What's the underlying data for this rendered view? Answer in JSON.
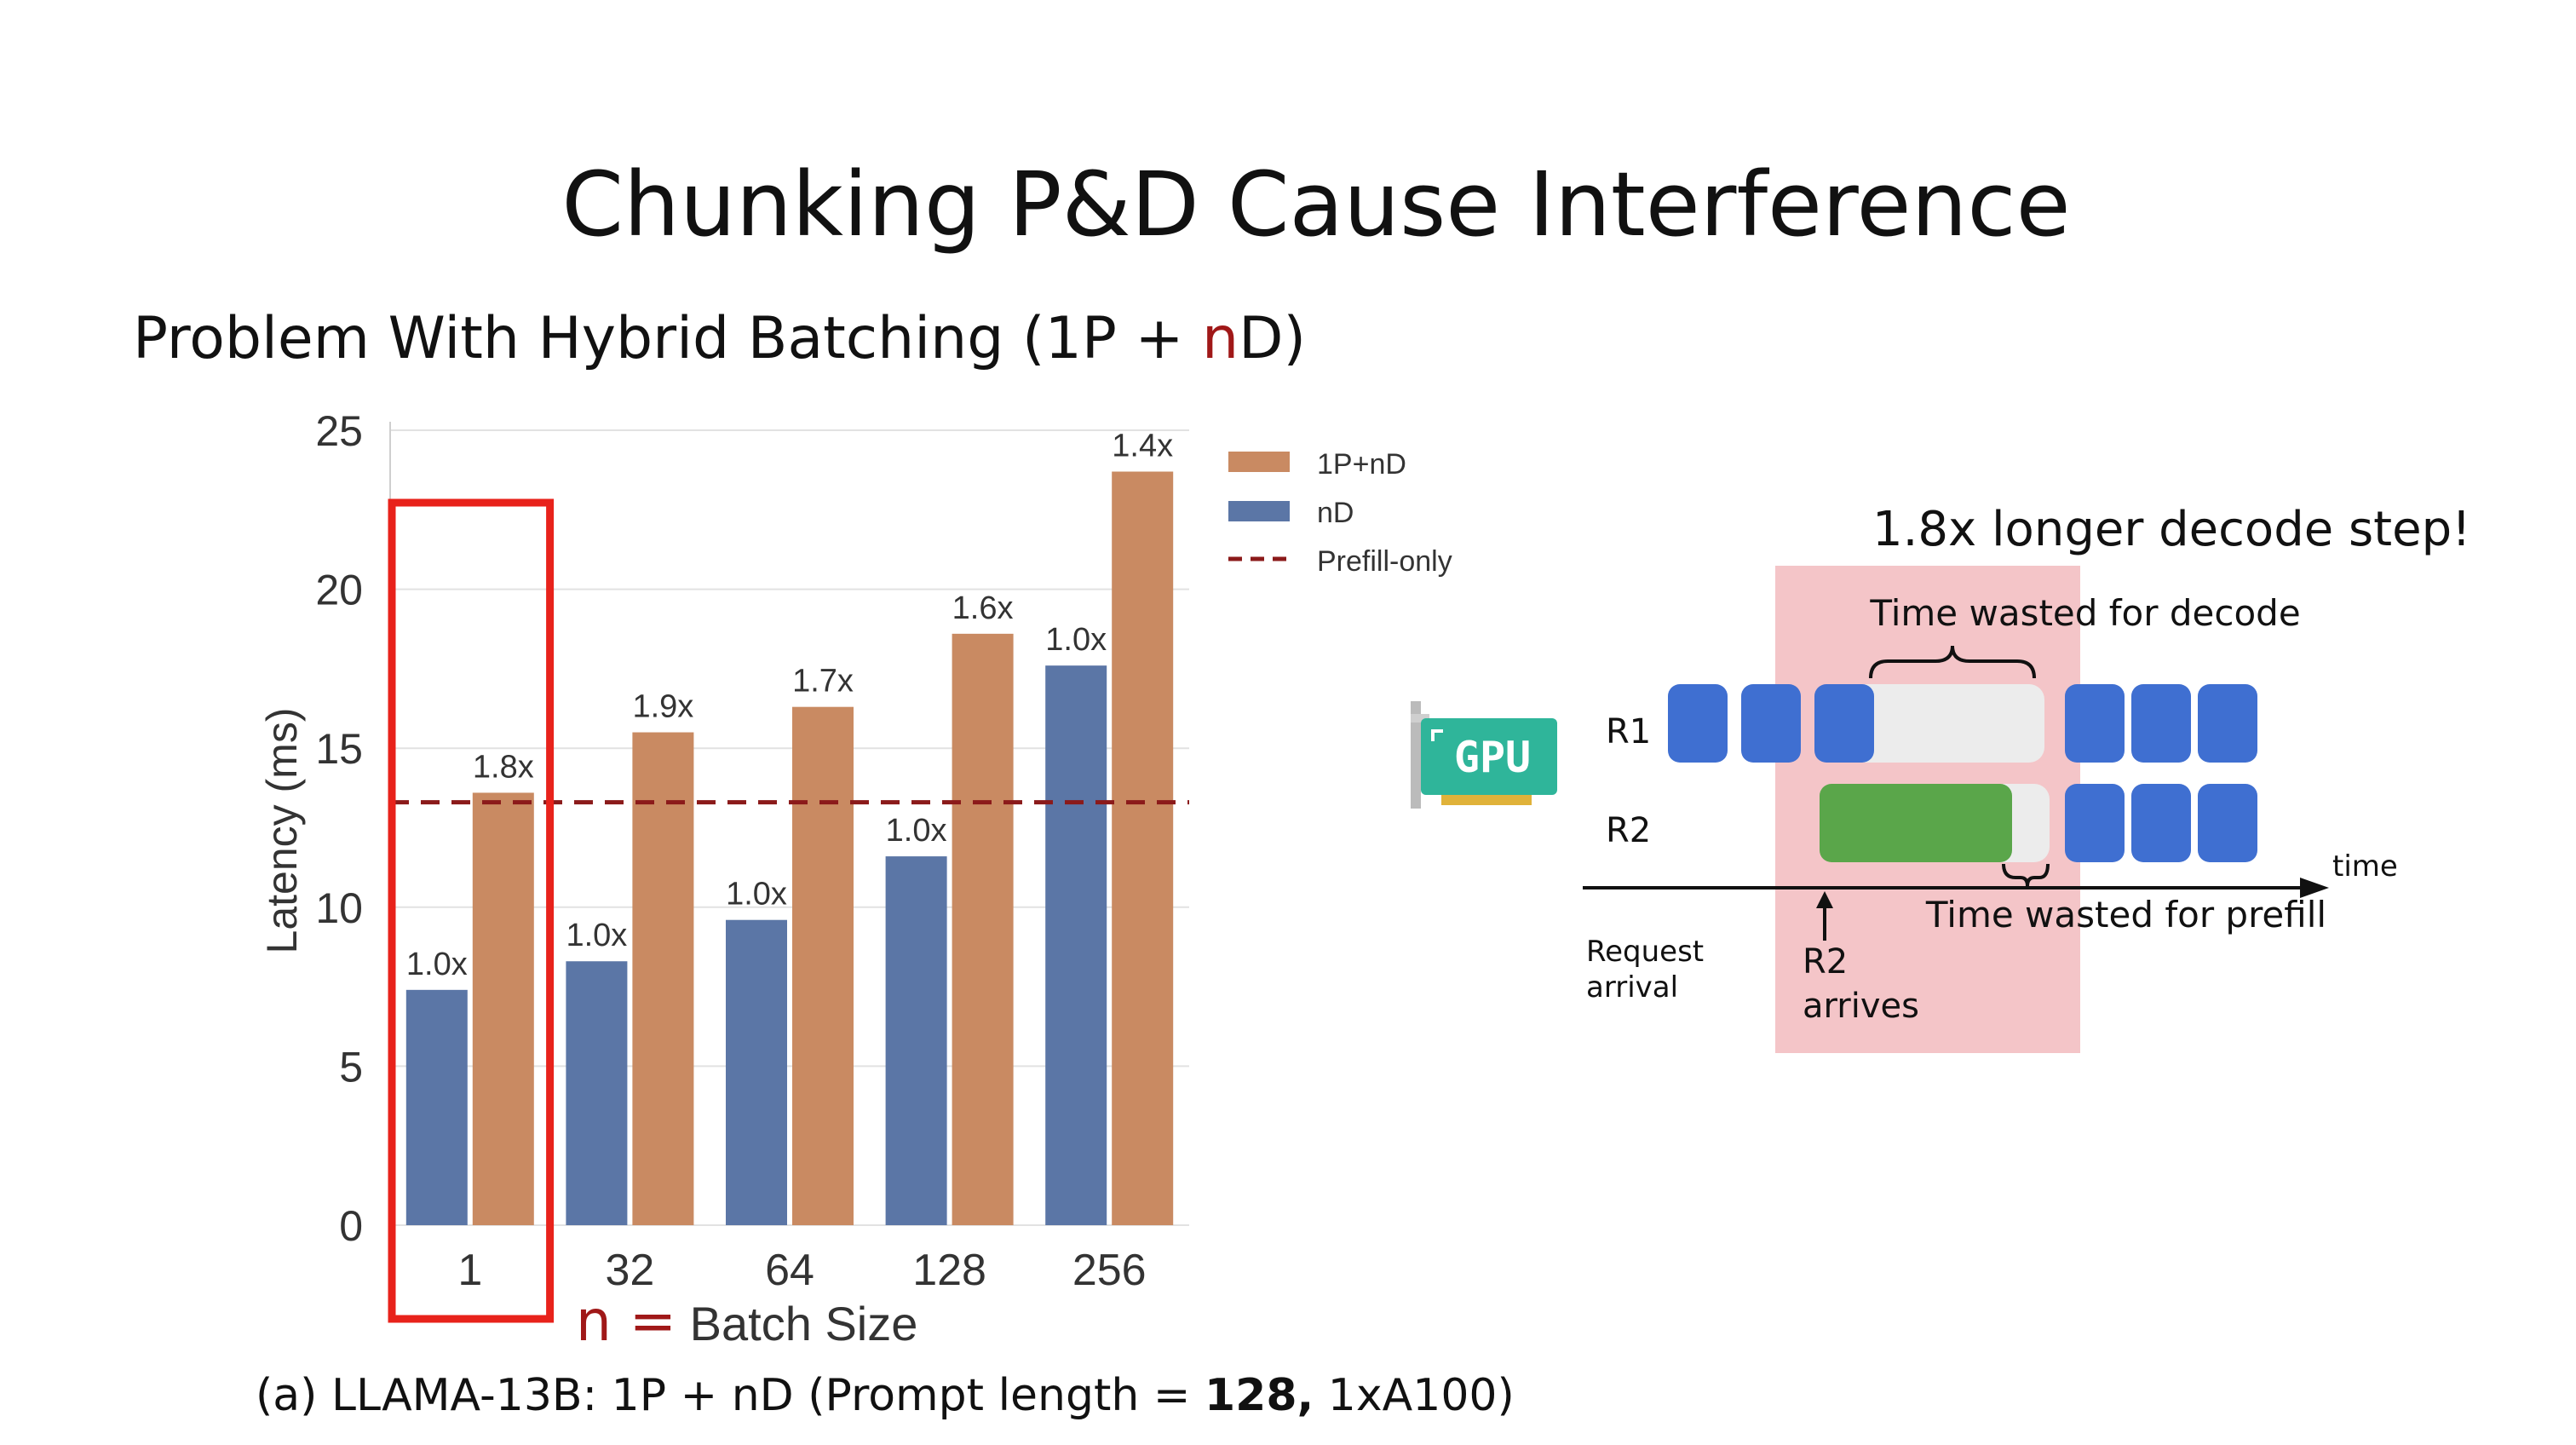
{
  "slide": {
    "title": "Chunking P&D Cause Interference",
    "subtitle_part1": "Problem With Hybrid Batching (1P + ",
    "subtitle_n": "n",
    "subtitle_part2": "D)",
    "accent_color": "#a01818"
  },
  "chart_data": {
    "type": "bar",
    "title": "",
    "categories": [
      "1",
      "32",
      "64",
      "128",
      "256"
    ],
    "series": [
      {
        "name": "nD",
        "values": [
          7.4,
          8.3,
          9.6,
          11.6,
          17.6
        ],
        "labels": [
          "1.0x",
          "1.0x",
          "1.0x",
          "1.0x",
          "1.0x"
        ],
        "color": "#5b76a6"
      },
      {
        "name": "1P+nD",
        "values": [
          13.6,
          15.5,
          16.3,
          18.6,
          23.7
        ],
        "labels": [
          "1.8x",
          "1.9x",
          "1.7x",
          "1.6x",
          "1.4x"
        ],
        "color": "#c98a62"
      }
    ],
    "reference_line": {
      "name": "Prefill-only",
      "value": 13.3,
      "color": "#8b1a1a",
      "style": "dashed"
    },
    "ylabel": "Latency (ms)",
    "xlabel_n": "n =",
    "xlabel_rest": " Batch Size",
    "ylim": [
      0,
      25
    ],
    "yticks": [
      0,
      5,
      10,
      15,
      20,
      25
    ],
    "legend": [
      "1P+nD",
      "nD",
      "Prefill-only"
    ],
    "legend_position": "top-right",
    "highlight_category": "1",
    "caption_prefix": "(a) LLAMA-13B: 1P + nD (Prompt length = ",
    "caption_bold": "128,",
    "caption_suffix": " 1xA100)"
  },
  "diagram": {
    "headline": "1.8x longer decode step!",
    "gpu_label": "GPU",
    "row_labels": [
      "R1",
      "R2"
    ],
    "decode_waste_label": "Time wasted for decode",
    "prefill_waste_label": "Time wasted for prefill",
    "time_label": "time",
    "request_arrival_label": [
      "Request",
      "arrival"
    ],
    "r2_arrives_label": [
      "R2",
      "arrives"
    ],
    "decode_color": "#3f6fd1",
    "prefill_color": "#5aa64a",
    "highlight_color": "#f4c5c8",
    "gpu_color": "#2fb59a"
  }
}
